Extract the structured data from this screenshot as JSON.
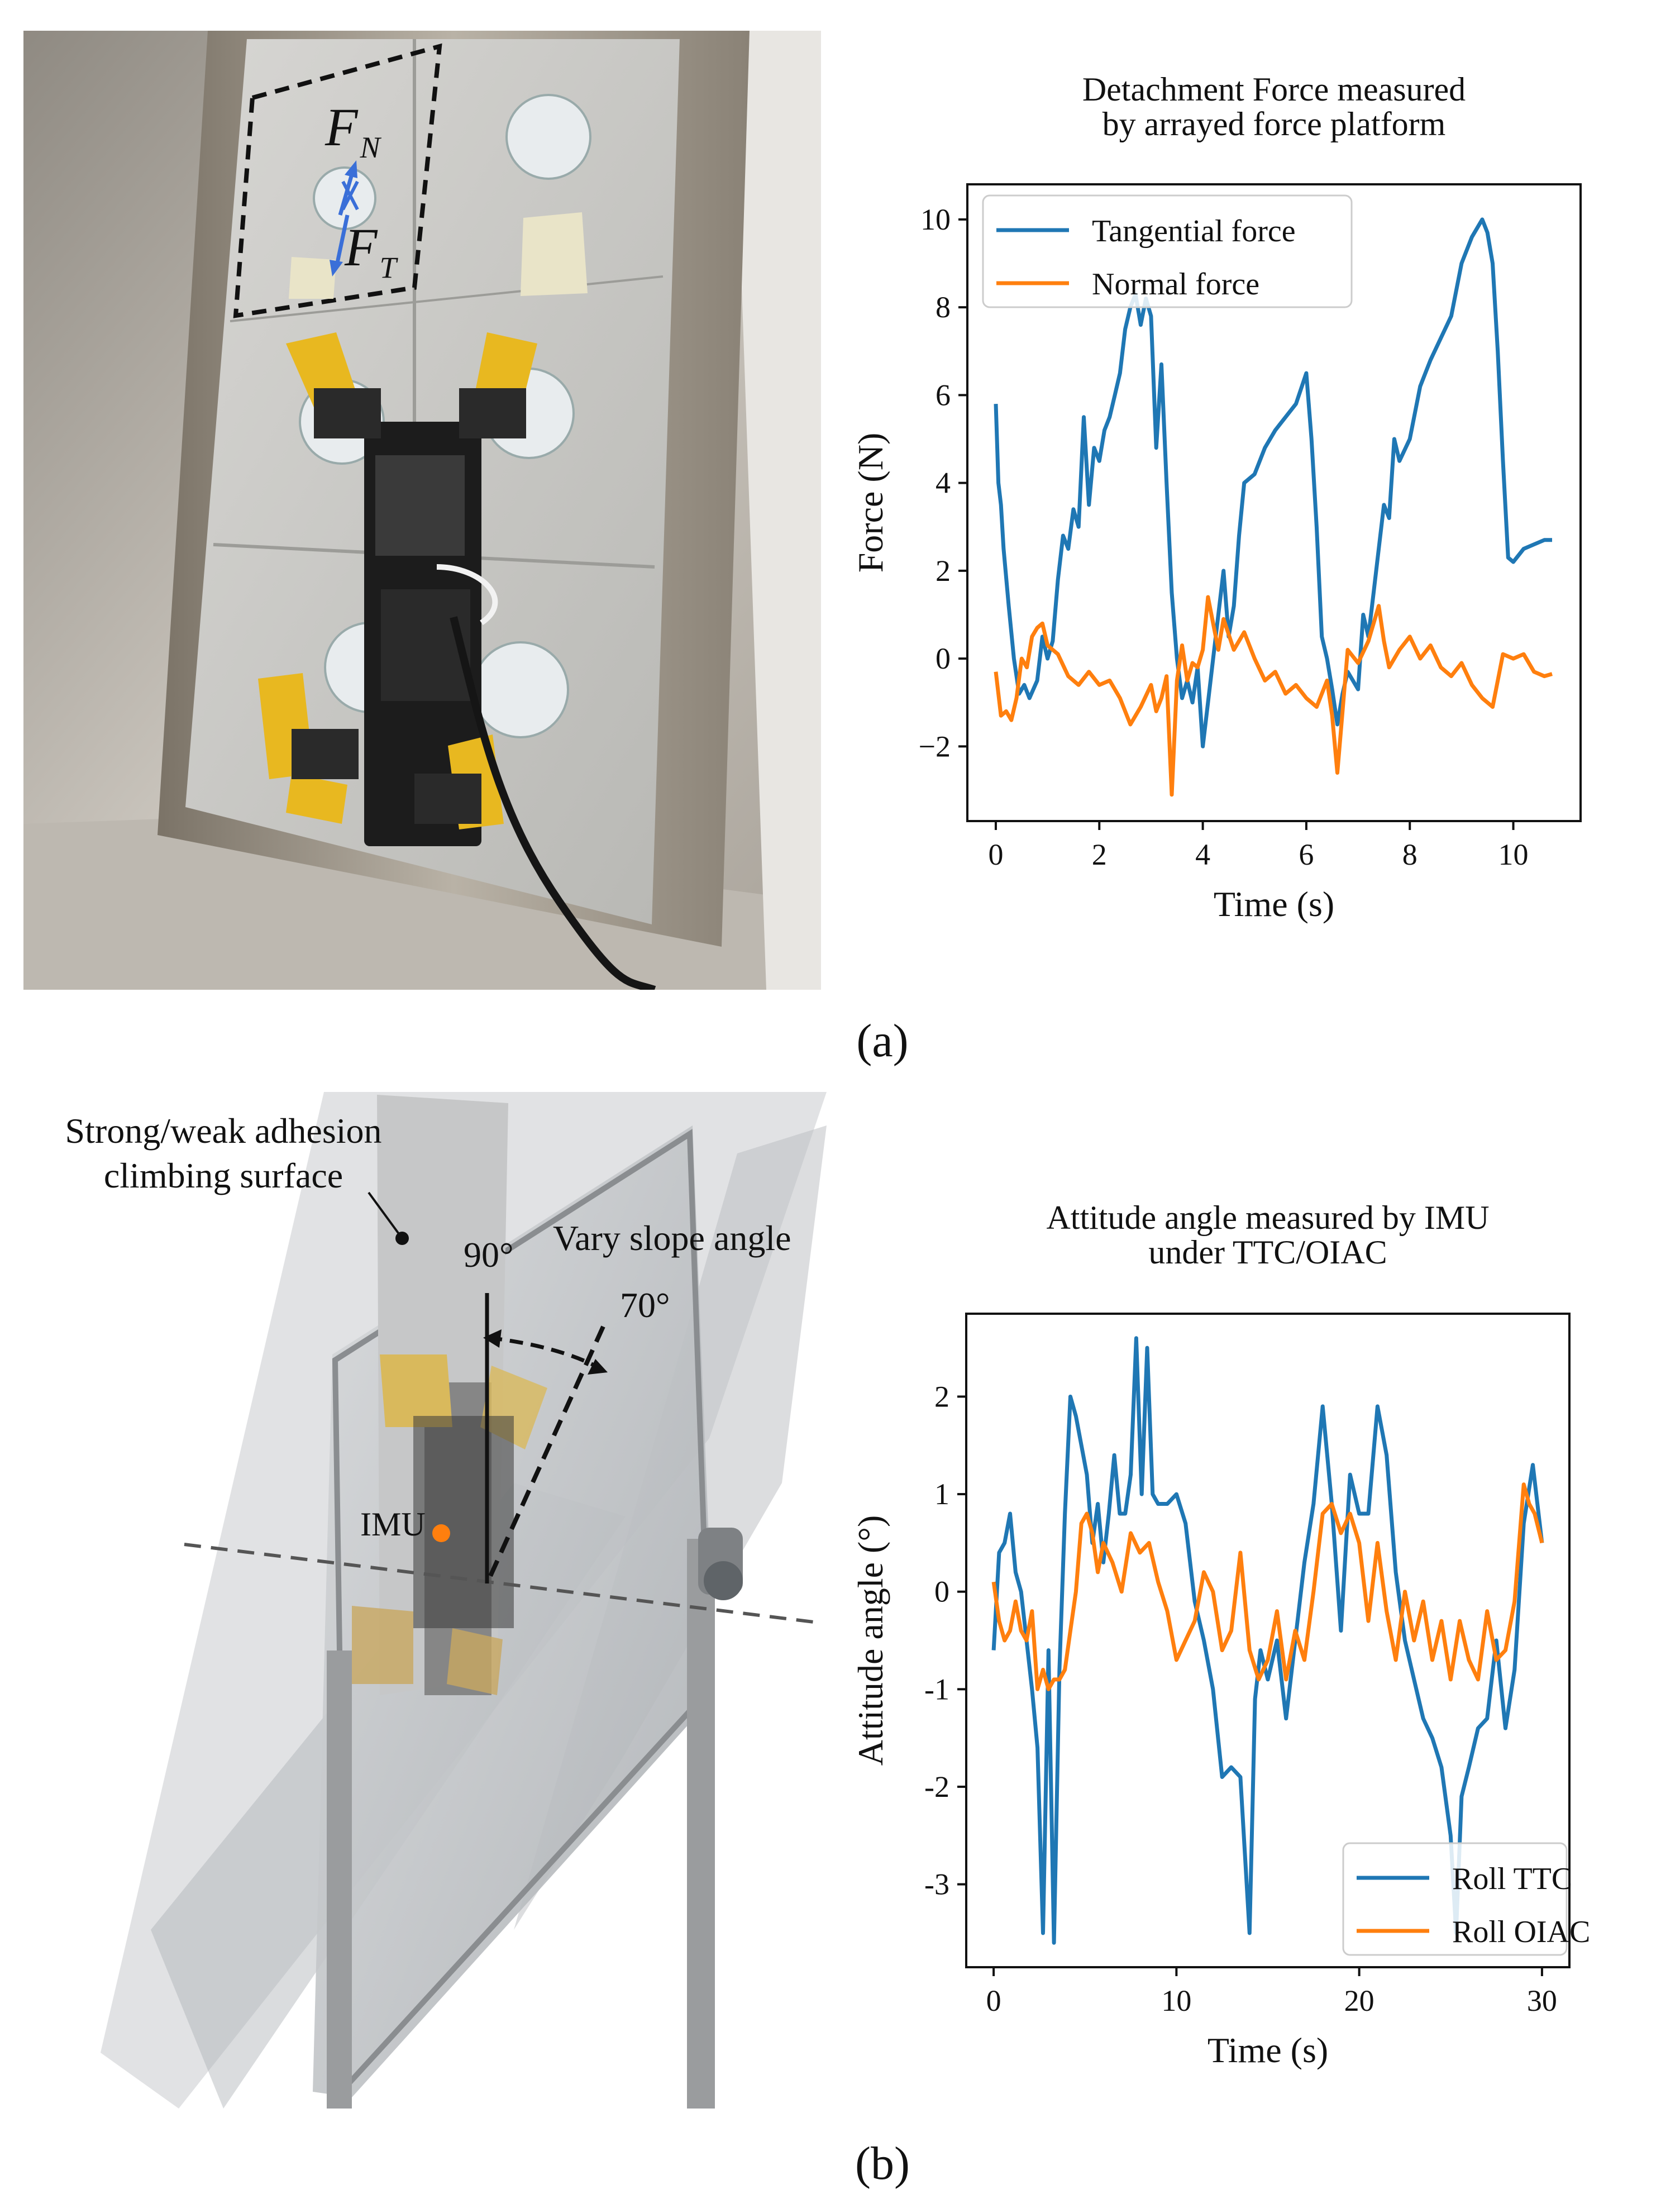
{
  "captions": {
    "a": "(a)",
    "b": "(b)"
  },
  "photo_a": {
    "label_fn_main": "F",
    "label_fn_sub": "N",
    "label_ft_main": "F",
    "label_ft_sub": "T"
  },
  "photo_b": {
    "surface_label_line1": "Strong/weak adhesion",
    "surface_label_line2": "climbing surface",
    "angle_90": "90°",
    "vary_label": "Vary slope angle",
    "angle_70": "70°",
    "imu_label": "IMU"
  },
  "colors": {
    "blue": "#1f77b4",
    "orange": "#ff7f0e",
    "imu_dot": "#ff7f0e",
    "arrow": "#3a6fd8"
  },
  "chart_data": [
    {
      "type": "line",
      "title": "Detachment Force measured by arrayed force platform",
      "title_lines": [
        "Detachment Force measured",
        "by arrayed force platform"
      ],
      "xlabel": "Time (s)",
      "ylabel": "Force (N)",
      "xlim": [
        -0.55,
        11.3
      ],
      "ylim": [
        -3.7,
        10.8
      ],
      "xticks": [
        0,
        2,
        4,
        6,
        8,
        10
      ],
      "xtick_labels": [
        "0",
        "2",
        "4",
        "6",
        "8",
        "10"
      ],
      "yticks": [
        -2,
        0,
        2,
        4,
        6,
        8,
        10
      ],
      "ytick_labels": [
        "−2",
        "0",
        "2",
        "4",
        "6",
        "8",
        "10"
      ],
      "legend": "top-left",
      "grid": false,
      "series": [
        {
          "name": "Tangential force",
          "color": "#1f77b4",
          "x": [
            0,
            0.05,
            0.1,
            0.15,
            0.25,
            0.35,
            0.45,
            0.55,
            0.65,
            0.8,
            0.9,
            1.0,
            1.1,
            1.2,
            1.3,
            1.4,
            1.5,
            1.6,
            1.7,
            1.8,
            1.9,
            2.0,
            2.1,
            2.2,
            2.3,
            2.4,
            2.5,
            2.6,
            2.7,
            2.8,
            2.9,
            3.0,
            3.1,
            3.2,
            3.3,
            3.4,
            3.5,
            3.6,
            3.7,
            3.8,
            3.9,
            4.0,
            4.1,
            4.2,
            4.3,
            4.4,
            4.5,
            4.6,
            4.7,
            4.8,
            5.0,
            5.2,
            5.4,
            5.6,
            5.8,
            6.0,
            6.1,
            6.2,
            6.3,
            6.4,
            6.5,
            6.6,
            6.7,
            6.8,
            6.9,
            7.0,
            7.1,
            7.2,
            7.3,
            7.4,
            7.5,
            7.6,
            7.7,
            7.8,
            8.0,
            8.2,
            8.4,
            8.6,
            8.8,
            9.0,
            9.2,
            9.4,
            9.5,
            9.6,
            9.7,
            9.8,
            9.9,
            10.0,
            10.2,
            10.4,
            10.6,
            10.75
          ],
          "y": [
            5.8,
            4.0,
            3.5,
            2.5,
            1.2,
            0.0,
            -0.8,
            -0.6,
            -0.9,
            -0.5,
            0.5,
            0.0,
            0.4,
            1.8,
            2.8,
            2.5,
            3.4,
            3.0,
            5.5,
            3.5,
            4.8,
            4.5,
            5.2,
            5.5,
            6.0,
            6.5,
            7.5,
            8.0,
            8.3,
            7.6,
            8.2,
            7.8,
            4.8,
            6.7,
            4.0,
            1.5,
            0.0,
            -0.9,
            -0.5,
            -1.0,
            -0.2,
            -2.0,
            -1.0,
            0.0,
            1.0,
            2.0,
            0.5,
            1.2,
            2.8,
            4.0,
            4.2,
            4.8,
            5.2,
            5.5,
            5.8,
            6.5,
            5.0,
            3.0,
            0.5,
            0.0,
            -0.7,
            -1.5,
            -0.8,
            -0.3,
            -0.5,
            -0.7,
            1.0,
            0.5,
            1.5,
            2.5,
            3.5,
            3.2,
            5.0,
            4.5,
            5.0,
            6.2,
            6.8,
            7.3,
            7.8,
            9.0,
            9.6,
            10.0,
            9.7,
            9.0,
            7.0,
            4.5,
            2.3,
            2.2,
            2.5,
            2.6,
            2.7,
            2.7
          ]
        },
        {
          "name": "Normal force",
          "color": "#ff7f0e",
          "x": [
            0,
            0.1,
            0.2,
            0.3,
            0.4,
            0.5,
            0.6,
            0.7,
            0.8,
            0.9,
            1.0,
            1.2,
            1.4,
            1.6,
            1.8,
            2.0,
            2.2,
            2.4,
            2.6,
            2.8,
            3.0,
            3.1,
            3.2,
            3.3,
            3.4,
            3.5,
            3.6,
            3.7,
            3.8,
            3.9,
            4.0,
            4.1,
            4.2,
            4.3,
            4.4,
            4.6,
            4.8,
            5.0,
            5.2,
            5.4,
            5.6,
            5.8,
            6.0,
            6.2,
            6.4,
            6.5,
            6.6,
            6.7,
            6.8,
            7.0,
            7.2,
            7.4,
            7.5,
            7.6,
            7.8,
            8.0,
            8.2,
            8.4,
            8.6,
            8.8,
            9.0,
            9.2,
            9.4,
            9.6,
            9.8,
            10.0,
            10.2,
            10.4,
            10.6,
            10.75
          ],
          "y": [
            -0.3,
            -1.3,
            -1.2,
            -1.4,
            -0.9,
            0.0,
            -0.2,
            0.5,
            0.7,
            0.8,
            0.3,
            0.1,
            -0.4,
            -0.6,
            -0.3,
            -0.6,
            -0.5,
            -0.9,
            -1.5,
            -1.1,
            -0.6,
            -1.2,
            -0.9,
            -0.4,
            -3.1,
            -0.5,
            0.3,
            -0.5,
            -0.1,
            -0.2,
            0.2,
            1.4,
            0.8,
            0.2,
            0.9,
            0.2,
            0.6,
            0.0,
            -0.5,
            -0.3,
            -0.8,
            -0.6,
            -0.9,
            -1.1,
            -0.5,
            -1.3,
            -2.6,
            -1.2,
            0.2,
            -0.1,
            0.4,
            1.2,
            0.4,
            -0.2,
            0.2,
            0.5,
            0.0,
            0.3,
            -0.2,
            -0.4,
            -0.1,
            -0.6,
            -0.9,
            -1.1,
            0.1,
            0.0,
            0.1,
            -0.3,
            -0.4,
            -0.35
          ]
        }
      ]
    },
    {
      "type": "line",
      "title": "Attitude angle measured by IMU under TTC/OIAC",
      "title_lines": [
        "Attitude angle measured by IMU",
        "under TTC/OIAC"
      ],
      "xlabel": "Time (s)",
      "ylabel": "Attitude angle (°)",
      "xlim": [
        -1.5,
        31.5
      ],
      "ylim": [
        -3.85,
        2.85
      ],
      "xticks": [
        0,
        10,
        20,
        30
      ],
      "xtick_labels": [
        "0",
        "10",
        "20",
        "30"
      ],
      "yticks": [
        -3,
        -2,
        -1,
        0,
        1,
        2
      ],
      "ytick_labels": [
        "-3",
        "-2",
        "-1",
        "0",
        "1",
        "2"
      ],
      "legend": "bottom-right",
      "grid": false,
      "series": [
        {
          "name": "Roll TTC",
          "color": "#1f77b4",
          "x": [
            0,
            0.3,
            0.6,
            0.9,
            1.2,
            1.5,
            1.8,
            2.1,
            2.4,
            2.7,
            3.0,
            3.3,
            3.6,
            3.9,
            4.2,
            4.5,
            4.8,
            5.1,
            5.4,
            5.7,
            6.0,
            6.3,
            6.6,
            6.9,
            7.2,
            7.5,
            7.8,
            8.1,
            8.4,
            8.7,
            9.0,
            9.5,
            10.0,
            10.5,
            11.0,
            11.5,
            12.0,
            12.5,
            13.0,
            13.5,
            14.0,
            14.3,
            14.6,
            15.0,
            15.5,
            16.0,
            16.5,
            17.0,
            17.5,
            18.0,
            18.5,
            19.0,
            19.5,
            20.0,
            20.5,
            21.0,
            21.5,
            22.0,
            22.5,
            23.0,
            23.5,
            24.0,
            24.5,
            25.0,
            25.3,
            25.6,
            26.0,
            26.5,
            27.0,
            27.5,
            28.0,
            28.5,
            29.0,
            29.5,
            30.0
          ],
          "y": [
            -0.6,
            0.4,
            0.5,
            0.8,
            0.2,
            0.0,
            -0.5,
            -1.0,
            -1.6,
            -3.5,
            -0.6,
            -3.6,
            -0.8,
            0.8,
            2.0,
            1.8,
            1.5,
            1.2,
            0.5,
            0.9,
            0.3,
            0.8,
            1.4,
            0.8,
            0.8,
            1.2,
            2.6,
            1.0,
            2.5,
            1.0,
            0.9,
            0.9,
            1.0,
            0.7,
            -0.1,
            -0.5,
            -1.0,
            -1.9,
            -1.8,
            -1.9,
            -3.5,
            -1.1,
            -0.6,
            -0.9,
            -0.5,
            -1.3,
            -0.5,
            0.3,
            0.9,
            1.9,
            0.9,
            -0.4,
            1.2,
            0.8,
            0.8,
            1.9,
            1.4,
            0.2,
            -0.5,
            -0.9,
            -1.3,
            -1.5,
            -1.8,
            -2.5,
            -3.5,
            -2.1,
            -1.8,
            -1.4,
            -1.3,
            -0.5,
            -1.4,
            -0.8,
            0.7,
            1.3,
            0.5
          ]
        },
        {
          "name": "Roll OIAC",
          "color": "#ff7f0e",
          "x": [
            0,
            0.3,
            0.6,
            0.9,
            1.2,
            1.5,
            1.8,
            2.1,
            2.4,
            2.7,
            3.0,
            3.3,
            3.6,
            3.9,
            4.2,
            4.5,
            4.8,
            5.1,
            5.4,
            5.7,
            6.0,
            6.5,
            7.0,
            7.5,
            8.0,
            8.5,
            9.0,
            9.5,
            10.0,
            10.5,
            11.0,
            11.5,
            12.0,
            12.5,
            13.0,
            13.5,
            14.0,
            14.5,
            15.0,
            15.5,
            16.0,
            16.5,
            17.0,
            17.5,
            18.0,
            18.5,
            19.0,
            19.5,
            20.0,
            20.5,
            21.0,
            21.5,
            22.0,
            22.5,
            23.0,
            23.5,
            24.0,
            24.5,
            25.0,
            25.5,
            26.0,
            26.5,
            27.0,
            27.5,
            28.0,
            28.5,
            29.0,
            29.3,
            29.6,
            30.0
          ],
          "y": [
            0.1,
            -0.3,
            -0.5,
            -0.4,
            -0.1,
            -0.4,
            -0.5,
            -0.2,
            -1.0,
            -0.8,
            -1.0,
            -0.9,
            -0.9,
            -0.8,
            -0.4,
            0.0,
            0.7,
            0.8,
            0.6,
            0.2,
            0.5,
            0.3,
            0.0,
            0.6,
            0.4,
            0.5,
            0.1,
            -0.2,
            -0.7,
            -0.5,
            -0.3,
            0.2,
            0.0,
            -0.6,
            -0.4,
            0.4,
            -0.6,
            -0.9,
            -0.7,
            -0.2,
            -0.9,
            -0.4,
            -0.7,
            0.0,
            0.8,
            0.9,
            0.6,
            0.8,
            0.5,
            -0.3,
            0.5,
            -0.2,
            -0.7,
            0.0,
            -0.5,
            -0.1,
            -0.7,
            -0.3,
            -0.9,
            -0.3,
            -0.7,
            -0.9,
            -0.2,
            -0.7,
            -0.6,
            -0.1,
            1.1,
            0.9,
            0.8,
            0.5
          ]
        }
      ]
    }
  ]
}
